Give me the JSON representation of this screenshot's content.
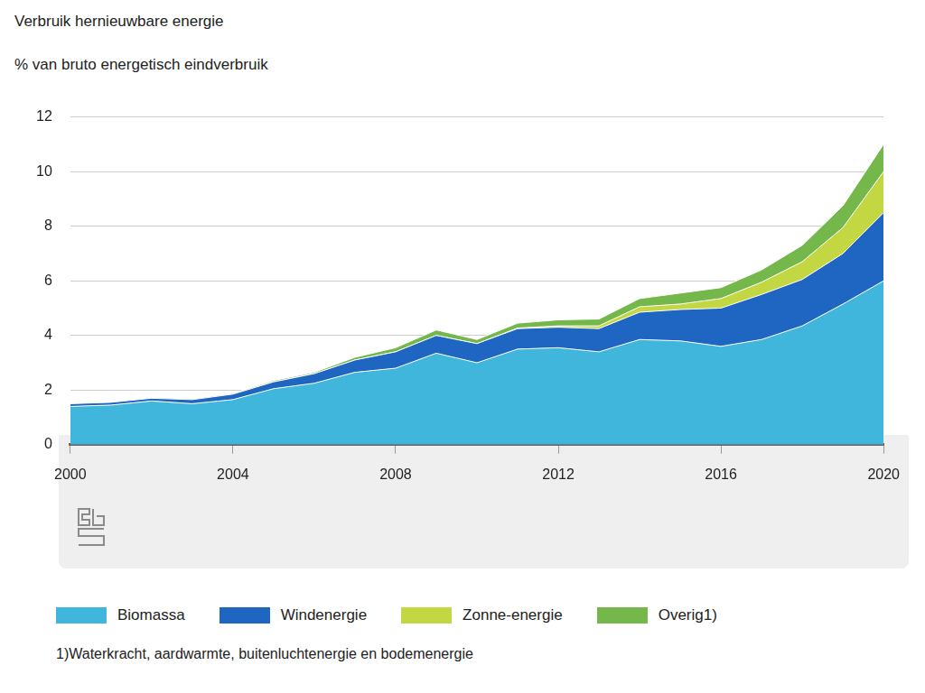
{
  "chart_data": {
    "type": "area",
    "title": "Verbruik hernieuwbare energie",
    "subtitle": "% van bruto energetisch eindverbruik",
    "footnote": "1)Waterkracht, aardwarmte, buitenluchtenergie en bodemenergie",
    "stacked": true,
    "grid": true,
    "legend": "bottom",
    "x": [
      2000,
      2001,
      2002,
      2003,
      2004,
      2005,
      2006,
      2007,
      2008,
      2009,
      2010,
      2011,
      2012,
      2013,
      2014,
      2015,
      2016,
      2017,
      2018,
      2019,
      2020
    ],
    "xlim": [
      2000,
      2020
    ],
    "xticks": [
      2000,
      2004,
      2008,
      2012,
      2016,
      2020
    ],
    "ylim": [
      0,
      12
    ],
    "yticks": [
      0,
      2,
      4,
      6,
      8,
      10,
      12
    ],
    "series": [
      {
        "name": "Biomassa",
        "color": "#41b6dc",
        "values": [
          1.4,
          1.45,
          1.6,
          1.5,
          1.65,
          2.05,
          2.25,
          2.65,
          2.8,
          3.35,
          3.0,
          3.5,
          3.55,
          3.4,
          3.85,
          3.8,
          3.6,
          3.85,
          4.35,
          5.15,
          6.0
        ]
      },
      {
        "name": "Windenergie",
        "color": "#1f66c2",
        "values": [
          0.1,
          0.1,
          0.1,
          0.15,
          0.2,
          0.25,
          0.35,
          0.45,
          0.6,
          0.65,
          0.7,
          0.75,
          0.75,
          0.85,
          1.0,
          1.15,
          1.4,
          1.65,
          1.7,
          1.85,
          2.5
        ]
      },
      {
        "name": "Zonne-energie",
        "color": "#c2d742",
        "values": [
          0,
          0,
          0,
          0,
          0,
          0,
          0,
          0,
          0,
          0,
          0,
          0.02,
          0.05,
          0.1,
          0.2,
          0.2,
          0.35,
          0.45,
          0.65,
          0.95,
          1.5
        ]
      },
      {
        "name": "Overig1)",
        "color": "#74b84c",
        "values": [
          0.02,
          0.02,
          0.03,
          0.03,
          0.03,
          0.05,
          0.05,
          0.1,
          0.15,
          0.2,
          0.15,
          0.18,
          0.22,
          0.25,
          0.3,
          0.4,
          0.4,
          0.45,
          0.6,
          0.8,
          1.0
        ]
      }
    ]
  }
}
